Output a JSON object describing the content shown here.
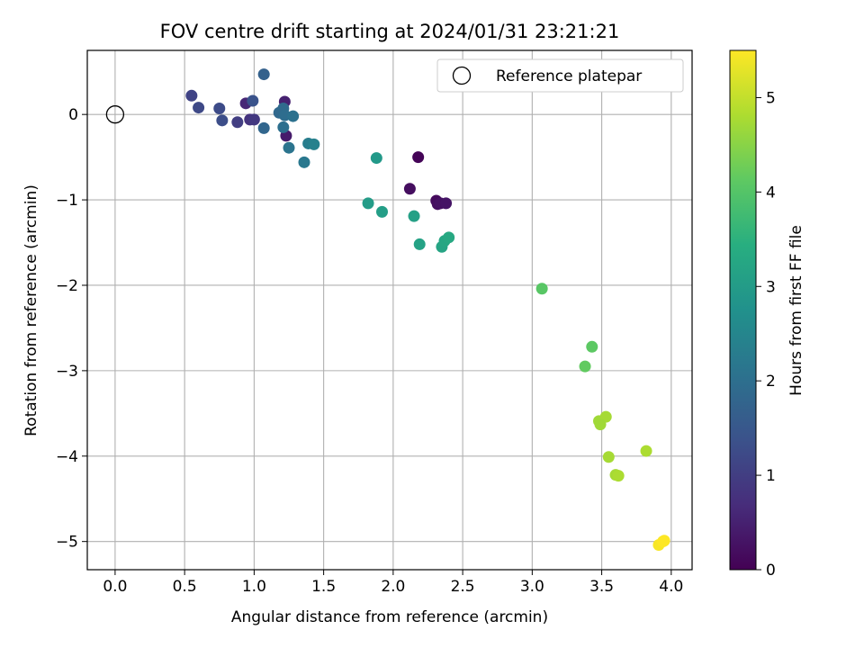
{
  "chart_data": {
    "type": "scatter",
    "title": "FOV centre drift starting at 2024/01/31 23:21:21",
    "xlabel": "Angular distance from reference (arcmin)",
    "ylabel": "Rotation from reference (arcmin)",
    "xlim": [
      -0.2,
      4.15
    ],
    "ylim": [
      -5.33,
      0.75
    ],
    "xticks": [
      "0.0",
      "0.5",
      "1.0",
      "1.5",
      "2.0",
      "2.5",
      "3.0",
      "3.5",
      "4.0"
    ],
    "xtick_values": [
      0.0,
      0.5,
      1.0,
      1.5,
      2.0,
      2.5,
      3.0,
      3.5,
      4.0
    ],
    "yticks": [
      "0",
      "−1",
      "−2",
      "−3",
      "−4",
      "−5"
    ],
    "ytick_values": [
      0,
      -1,
      -2,
      -3,
      -4,
      -5
    ],
    "grid": true,
    "legend": {
      "placement": "top-right",
      "label": "Reference platepar"
    },
    "reference_point": {
      "x": 0.0,
      "y": 0.0
    },
    "colorbar": {
      "label": "Hours from first FF file",
      "colormap": "viridis",
      "range": [
        0,
        5.5
      ],
      "ticks": [
        "0",
        "1",
        "2",
        "3",
        "4",
        "5"
      ],
      "tick_values": [
        0,
        1,
        2,
        3,
        4,
        5
      ]
    },
    "points": [
      {
        "x": 2.18,
        "y": -0.5,
        "c": 0.05
      },
      {
        "x": 2.12,
        "y": -0.87,
        "c": 0.2
      },
      {
        "x": 2.31,
        "y": -1.01,
        "c": 0.15
      },
      {
        "x": 2.32,
        "y": -1.05,
        "c": 0.2
      },
      {
        "x": 2.34,
        "y": -1.04,
        "c": 0.25
      },
      {
        "x": 2.38,
        "y": -1.04,
        "c": 0.3
      },
      {
        "x": 1.23,
        "y": -0.25,
        "c": 0.4
      },
      {
        "x": 1.22,
        "y": 0.15,
        "c": 0.5
      },
      {
        "x": 0.94,
        "y": 0.13,
        "c": 0.6
      },
      {
        "x": 0.97,
        "y": -0.06,
        "c": 0.8
      },
      {
        "x": 1.0,
        "y": -0.06,
        "c": 0.9
      },
      {
        "x": 0.88,
        "y": -0.09,
        "c": 1.0
      },
      {
        "x": 0.55,
        "y": 0.22,
        "c": 1.1
      },
      {
        "x": 0.6,
        "y": 0.08,
        "c": 1.2
      },
      {
        "x": 0.75,
        "y": 0.07,
        "c": 1.25
      },
      {
        "x": 0.77,
        "y": -0.07,
        "c": 1.3
      },
      {
        "x": 0.99,
        "y": 0.16,
        "c": 1.4
      },
      {
        "x": 1.07,
        "y": 0.47,
        "c": 1.7
      },
      {
        "x": 1.07,
        "y": -0.16,
        "c": 1.8
      },
      {
        "x": 1.18,
        "y": 0.02,
        "c": 1.85
      },
      {
        "x": 1.21,
        "y": 0.07,
        "c": 1.9
      },
      {
        "x": 1.22,
        "y": -0.01,
        "c": 1.95
      },
      {
        "x": 1.21,
        "y": -0.15,
        "c": 2.0
      },
      {
        "x": 1.28,
        "y": -0.02,
        "c": 2.05
      },
      {
        "x": 1.25,
        "y": -0.39,
        "c": 2.1
      },
      {
        "x": 1.36,
        "y": -0.56,
        "c": 2.2
      },
      {
        "x": 1.39,
        "y": -0.34,
        "c": 2.3
      },
      {
        "x": 1.43,
        "y": -0.35,
        "c": 2.4
      },
      {
        "x": 1.88,
        "y": -0.51,
        "c": 2.95
      },
      {
        "x": 1.82,
        "y": -1.04,
        "c": 3.0
      },
      {
        "x": 1.92,
        "y": -1.14,
        "c": 3.05
      },
      {
        "x": 2.15,
        "y": -1.19,
        "c": 3.1
      },
      {
        "x": 2.19,
        "y": -1.52,
        "c": 3.15
      },
      {
        "x": 2.35,
        "y": -1.55,
        "c": 3.2
      },
      {
        "x": 2.37,
        "y": -1.48,
        "c": 3.25
      },
      {
        "x": 2.4,
        "y": -1.44,
        "c": 3.3
      },
      {
        "x": 3.07,
        "y": -2.04,
        "c": 4.05
      },
      {
        "x": 3.43,
        "y": -2.72,
        "c": 4.1
      },
      {
        "x": 3.38,
        "y": -2.95,
        "c": 4.15
      },
      {
        "x": 3.48,
        "y": -3.59,
        "c": 4.7
      },
      {
        "x": 3.53,
        "y": -3.54,
        "c": 4.75
      },
      {
        "x": 3.49,
        "y": -3.63,
        "c": 4.7
      },
      {
        "x": 3.55,
        "y": -4.01,
        "c": 4.75
      },
      {
        "x": 3.82,
        "y": -3.94,
        "c": 4.8
      },
      {
        "x": 3.6,
        "y": -4.22,
        "c": 4.75
      },
      {
        "x": 3.62,
        "y": -4.23,
        "c": 4.8
      },
      {
        "x": 3.91,
        "y": -5.04,
        "c": 5.45
      },
      {
        "x": 3.94,
        "y": -5.0,
        "c": 5.5
      },
      {
        "x": 3.95,
        "y": -4.99,
        "c": 5.5
      }
    ]
  }
}
